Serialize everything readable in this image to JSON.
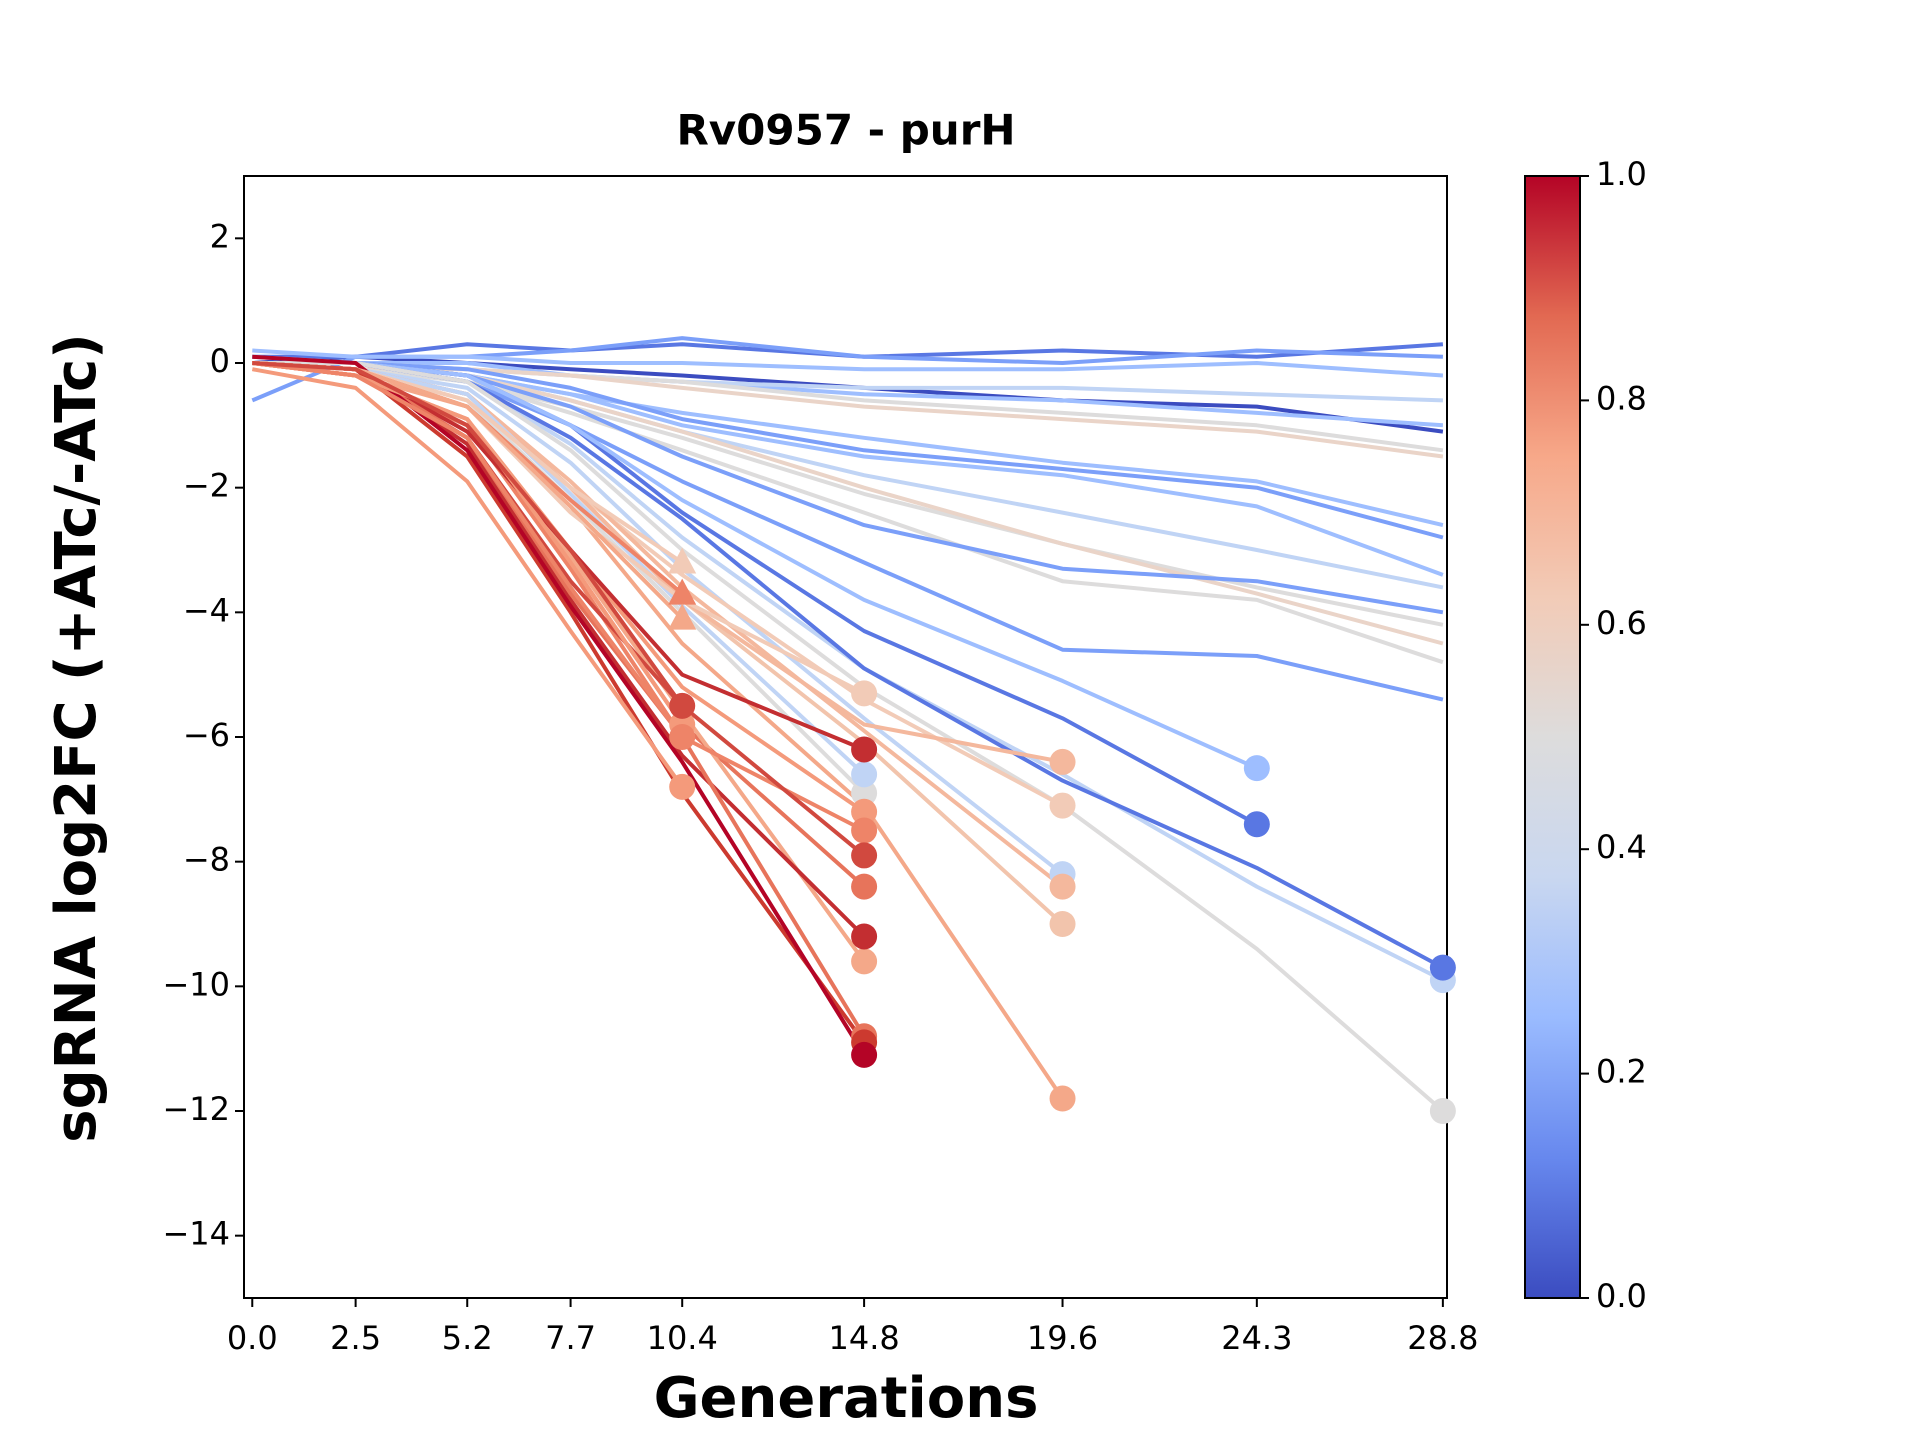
{
  "chart_data": {
    "type": "line",
    "title": "Rv0957 - purH",
    "xlabel": "Generations",
    "ylabel": "sgRNA log2FC (+ATc/-ATc)",
    "x": [
      0,
      2.5,
      5.2,
      7.7,
      10.4,
      14.8,
      19.6,
      24.3,
      28.8
    ],
    "xlim": [
      -0.2,
      28.9
    ],
    "xticks": [
      {
        "value": 0,
        "label": "0.0"
      },
      2.5,
      5.2,
      7.7,
      10.4,
      14.8,
      19.6,
      24.3,
      28.8
    ],
    "ylim": [
      -15,
      3
    ],
    "yticks": [
      {
        "value": -14,
        "label": "−14"
      },
      {
        "value": -12,
        "label": "−12"
      },
      {
        "value": -10,
        "label": "−10"
      },
      {
        "value": -8,
        "label": "−8"
      },
      {
        "value": -6,
        "label": "−6"
      },
      {
        "value": -4,
        "label": "−4"
      },
      {
        "value": -2,
        "label": "−2"
      },
      0,
      2
    ],
    "grid": false,
    "colorbar": {
      "lim": [
        0,
        1
      ],
      "ticks": [
        {
          "value": 0,
          "label": "0.0"
        },
        0.2,
        0.4,
        0.6,
        0.8,
        {
          "value": 1,
          "label": "1.0"
        }
      ],
      "colors": [
        "#3b4cc0",
        "#6788ee",
        "#9abbff",
        "#c9d7f0",
        "#dddcdc",
        "#f2cbb7",
        "#f7a889",
        "#e26952",
        "#b40426"
      ]
    },
    "series": [
      {
        "color": "#3b4cc0",
        "marker": "none",
        "values": [
          0,
          0.1,
          0,
          -0.1,
          -0.2,
          -0.4,
          -0.6,
          -0.7,
          -1.1
        ]
      },
      {
        "color": "#5977e3",
        "marker": "none",
        "values": [
          0.1,
          0.1,
          0.3,
          0.2,
          0.3,
          0.1,
          0.2,
          0.1,
          0.3
        ]
      },
      {
        "color": "#7b9ff9",
        "marker": "none",
        "values": [
          -0.6,
          0.1,
          0.1,
          0.2,
          0.4,
          0.1,
          0,
          0.2,
          0.1
        ]
      },
      {
        "color": "#9ebeff",
        "marker": "none",
        "values": [
          0.2,
          0.1,
          0.1,
          0,
          0,
          -0.1,
          -0.1,
          0,
          -0.2
        ]
      },
      {
        "color": "#9ebeff",
        "marker": "none",
        "values": [
          0,
          0,
          0,
          -0.2,
          -0.3,
          -0.5,
          -0.6,
          -0.8,
          -1
        ]
      },
      {
        "color": "#c0d4f5",
        "marker": "none",
        "values": [
          0.1,
          0,
          -0.1,
          -0.2,
          -0.3,
          -0.4,
          -0.4,
          -0.5,
          -0.6
        ]
      },
      {
        "color": "#dddcdc",
        "marker": "none",
        "values": [
          0,
          0,
          -0.1,
          -0.2,
          -0.3,
          -0.6,
          -0.8,
          -1,
          -1.4
        ]
      },
      {
        "color": "#ead4c8",
        "marker": "none",
        "values": [
          0,
          -0.1,
          -0.1,
          -0.2,
          -0.4,
          -0.7,
          -0.9,
          -1.1,
          -1.5
        ]
      },
      {
        "color": "#9ebeff",
        "marker": "none",
        "values": [
          0,
          0,
          -0.2,
          -0.5,
          -0.8,
          -1.2,
          -1.6,
          -1.9,
          -2.6
        ]
      },
      {
        "color": "#7b9ff9",
        "marker": "none",
        "values": [
          0.1,
          0,
          -0.1,
          -0.4,
          -0.9,
          -1.4,
          -1.7,
          -2,
          -2.8
        ]
      },
      {
        "color": "#9ebeff",
        "marker": "none",
        "values": [
          0,
          0,
          -0.2,
          -0.5,
          -1,
          -1.5,
          -1.8,
          -2.3,
          -3.4
        ]
      },
      {
        "color": "#c0d4f5",
        "marker": "none",
        "values": [
          0,
          0,
          -0.2,
          -0.6,
          -1.1,
          -1.8,
          -2.4,
          -3,
          -3.6
        ]
      },
      {
        "color": "#dddcdc",
        "marker": "none",
        "values": [
          0,
          0,
          -0.3,
          -0.7,
          -1.2,
          -2.1,
          -2.9,
          -3.6,
          -4.2
        ]
      },
      {
        "color": "#ead4c8",
        "marker": "none",
        "values": [
          0,
          0,
          -0.2,
          -0.6,
          -1.1,
          -2,
          -2.9,
          -3.7,
          -4.5
        ]
      },
      {
        "color": "#dddcdc",
        "marker": "none",
        "values": [
          0,
          -0.1,
          -0.3,
          -0.8,
          -1.4,
          -2.4,
          -3.5,
          -3.8,
          -4.8
        ]
      },
      {
        "color": "#7b9ff9",
        "marker": "none",
        "values": [
          0,
          0,
          -0.2,
          -0.7,
          -1.5,
          -2.6,
          -3.3,
          -3.5,
          -4
        ]
      },
      {
        "color": "#7b9ff9",
        "marker": "none",
        "values": [
          0,
          0,
          -0.3,
          -1,
          -1.9,
          -3.2,
          -4.6,
          -4.7,
          -5.4
        ]
      },
      {
        "color": "#5977e3",
        "marker": "circle",
        "values": [
          0,
          0,
          -0.2,
          -1,
          -2.4,
          -4.3,
          -5.7,
          -7.4,
          null
        ]
      },
      {
        "color": "#9ebeff",
        "marker": "circle",
        "values": [
          0,
          0,
          -0.2,
          -1,
          -2.2,
          -3.8,
          -5.1,
          -6.5,
          null
        ]
      },
      {
        "color": "#c0d4f5",
        "marker": "circle",
        "values": [
          0,
          0,
          -0.3,
          -1.3,
          -2.8,
          -4.9,
          -6.6,
          -8.4,
          -9.9
        ]
      },
      {
        "color": "#5977e3",
        "marker": "circle",
        "values": [
          0,
          0,
          -0.3,
          -1.2,
          -2.5,
          -4.9,
          -6.7,
          -8.1,
          -9.7
        ]
      },
      {
        "color": "#dddcdc",
        "marker": "circle",
        "values": [
          0,
          0,
          -0.3,
          -1.4,
          -3,
          -5.2,
          -7.1,
          -9.4,
          -12
        ]
      },
      {
        "color": "#c0d4f5",
        "marker": "circle",
        "values": [
          0,
          -0.1,
          -0.4,
          -1.6,
          -3.3,
          -5.7,
          -8.2,
          null,
          null
        ]
      },
      {
        "color": "#f2cbb7",
        "marker": "circle",
        "values": [
          0,
          -0.1,
          -0.5,
          -2,
          -3.4,
          -5.4,
          -7.1,
          null,
          null
        ]
      },
      {
        "color": "#f4b89d",
        "marker": "circle",
        "values": [
          0,
          -0.1,
          -0.5,
          -1.9,
          -3.6,
          -5.9,
          -8.4,
          null,
          null
        ]
      },
      {
        "color": "#f2c4ac",
        "marker": "circle",
        "values": [
          0,
          -0.1,
          -0.5,
          -2,
          -3.8,
          -6.1,
          -9,
          null,
          null
        ]
      },
      {
        "color": "#f4a889",
        "marker": "circle",
        "values": [
          0,
          -0.2,
          -0.7,
          -2.3,
          -4.5,
          -7.1,
          -11.8,
          null,
          null
        ]
      },
      {
        "color": "#f4b89d",
        "marker": "circle",
        "values": [
          0,
          -0.1,
          -0.5,
          -2,
          -3.8,
          -5.8,
          -6.4,
          null,
          null
        ]
      },
      {
        "color": "#dddcdc",
        "marker": "circle",
        "values": [
          0,
          -0.1,
          -0.6,
          -2.2,
          -4,
          -6.9,
          null,
          null,
          null
        ]
      },
      {
        "color": "#c0d4f5",
        "marker": "circle",
        "values": [
          0,
          -0.1,
          -0.5,
          -2.1,
          -3.9,
          -6.6,
          null,
          null,
          null
        ]
      },
      {
        "color": "#f2cbb7",
        "marker": "circle",
        "values": [
          0,
          -0.1,
          -0.7,
          -2.4,
          -3.8,
          -5.3,
          null,
          null,
          null
        ]
      },
      {
        "color": "#f49a7b",
        "marker": "circle",
        "values": [
          0,
          -0.2,
          -0.9,
          -3,
          -5.2,
          -7.2,
          null,
          null,
          null
        ]
      },
      {
        "color": "#e7745b",
        "marker": "circle",
        "values": [
          0,
          -0.2,
          -1,
          -3.2,
          -5.8,
          -8.4,
          null,
          null,
          null
        ]
      },
      {
        "color": "#f4a889",
        "marker": "circle",
        "values": [
          0,
          -0.2,
          -0.9,
          -3.1,
          -5.6,
          -9.6,
          null,
          null,
          null
        ]
      },
      {
        "color": "#ee8468",
        "marker": "circle",
        "values": [
          0,
          -0.2,
          -1,
          -3.3,
          -6,
          -7.5,
          null,
          null,
          null
        ]
      },
      {
        "color": "#d1493f",
        "marker": "circle",
        "values": [
          0,
          -0.1,
          -1.2,
          -3.5,
          -5.5,
          -7.9,
          null,
          null,
          null
        ]
      },
      {
        "color": "#c32e31",
        "marker": "circle",
        "values": [
          0,
          -0.1,
          -1.1,
          -3,
          -5,
          -6.2,
          null,
          null,
          null
        ]
      },
      {
        "color": "#c32e31",
        "marker": "circle",
        "values": [
          0,
          -0.1,
          -1.3,
          -3.8,
          -6.3,
          -9.2,
          null,
          null,
          null
        ]
      },
      {
        "color": "#e7745b",
        "marker": "circle",
        "values": [
          0,
          -0.1,
          -1.2,
          -3.7,
          -6,
          -10.8,
          null,
          null,
          null
        ]
      },
      {
        "color": "#cc3a2f",
        "marker": "circle",
        "values": [
          0,
          -0.1,
          -1.5,
          -4,
          -6.9,
          -10.9,
          null,
          null,
          null
        ]
      },
      {
        "color": "#b40426",
        "marker": "circle",
        "values": [
          0.1,
          0,
          -1.4,
          -3.9,
          -6.4,
          -11.1,
          null,
          null,
          null
        ]
      },
      {
        "color": "#f2cbb7",
        "marker": "triangle",
        "values": [
          0,
          -0.1,
          -0.6,
          -2,
          -3.2,
          null,
          null,
          null,
          null
        ]
      },
      {
        "color": "#ee8468",
        "marker": "triangle",
        "values": [
          0,
          -0.1,
          -0.7,
          -2.2,
          -3.7,
          null,
          null,
          null,
          null
        ]
      },
      {
        "color": "#f4a889",
        "marker": "triangle",
        "values": [
          0,
          -0.1,
          -0.7,
          -2.3,
          -4.1,
          null,
          null,
          null,
          null
        ]
      },
      {
        "color": "#f49a7b",
        "marker": "circle",
        "values": [
          -0.1,
          -0.4,
          -1.9,
          -4.3,
          -6.8,
          null,
          null,
          null,
          null
        ]
      },
      {
        "color": "#f49a7b",
        "marker": "circle",
        "values": [
          0,
          -0.2,
          -0.9,
          -3.2,
          -5.8,
          null,
          null,
          null,
          null
        ]
      },
      {
        "color": "#ee8468",
        "marker": "circle",
        "values": [
          0,
          -0.2,
          -1.2,
          -3.6,
          -6,
          null,
          null,
          null,
          null
        ]
      },
      {
        "color": "#d1493f",
        "marker": "circle",
        "values": [
          0,
          -0.1,
          -1,
          -3,
          -5.5,
          null,
          null,
          null,
          null
        ]
      }
    ]
  }
}
